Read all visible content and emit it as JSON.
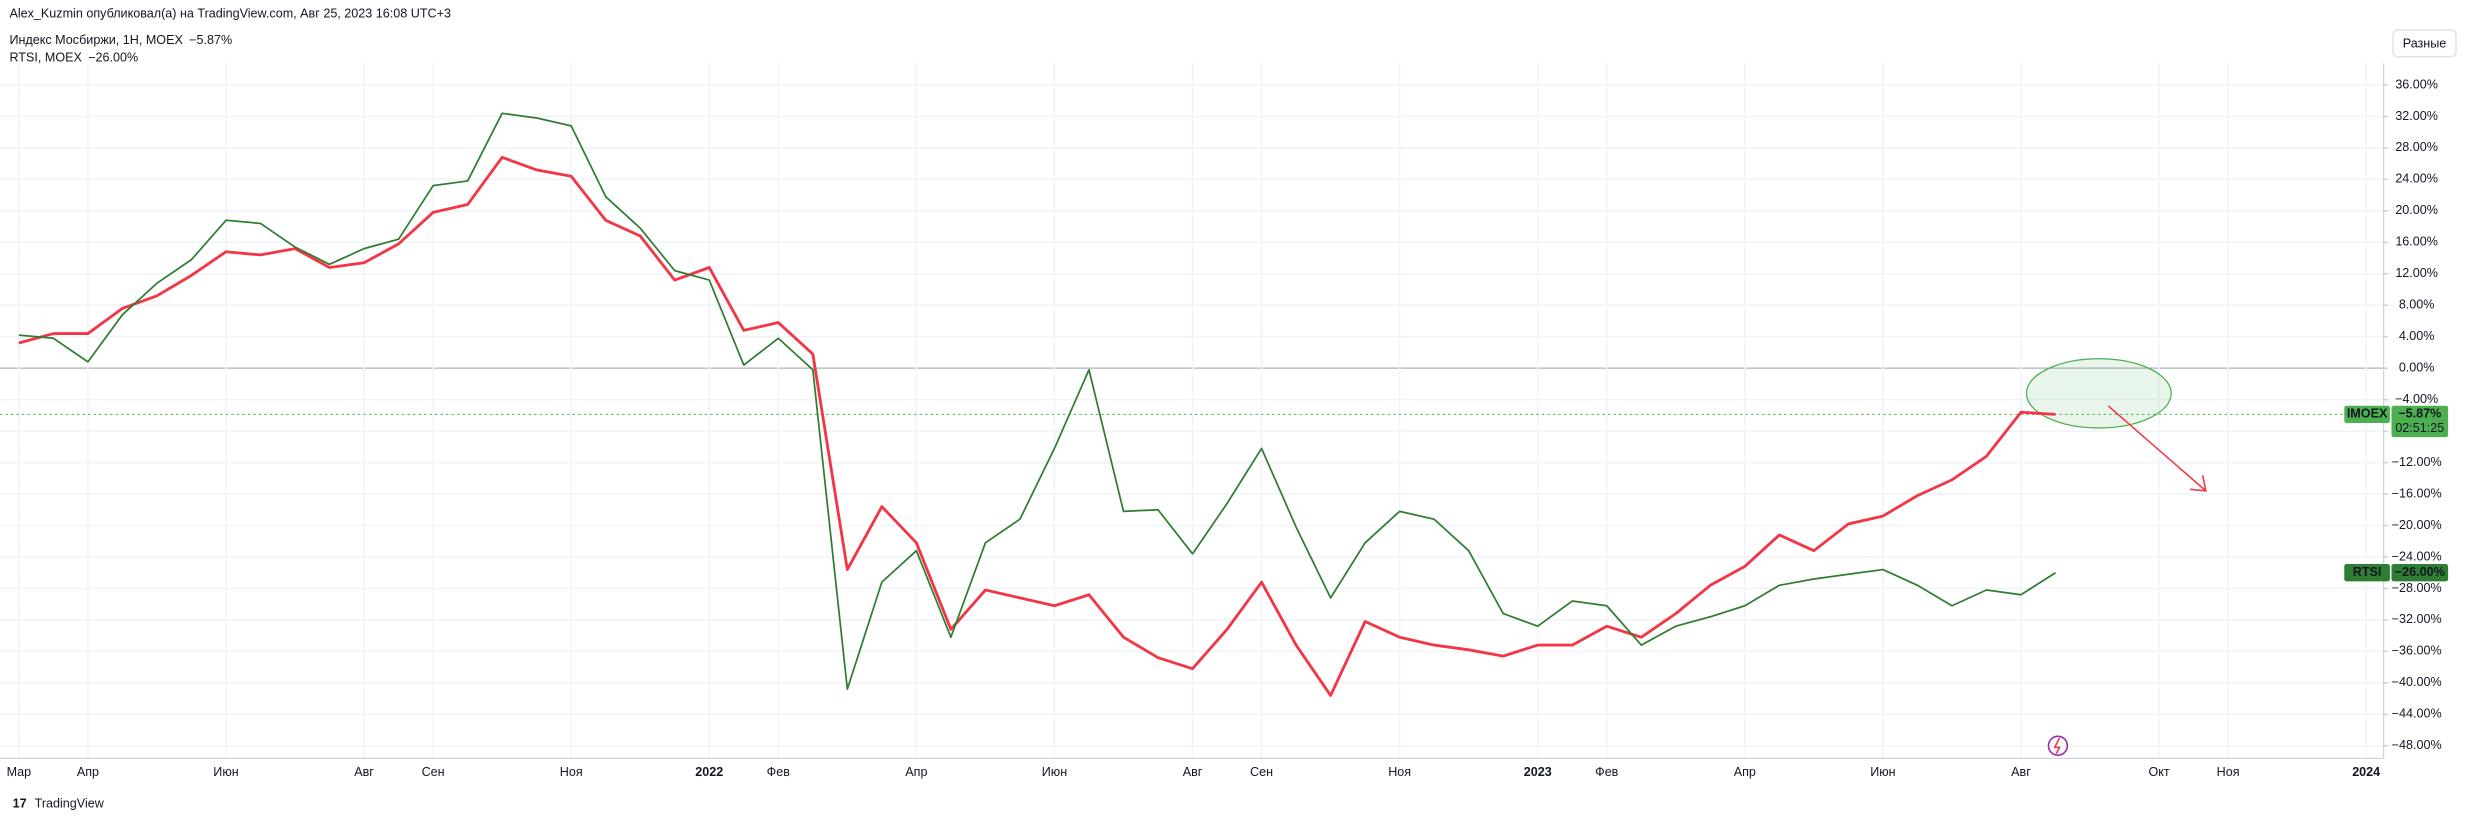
{
  "chart_data": {
    "type": "line",
    "title": "Alex_Kuzmin опубликовал(а) на TradingView.com, Авг 25, 2023 16:08 UTC+3",
    "button": "Разные",
    "brand": "TradingView",
    "time_label": "02:51:25",
    "categories": [
      "Мар",
      null,
      "Апр",
      null,
      null,
      null,
      "Июн",
      null,
      null,
      null,
      "Авг",
      null,
      "Сен",
      null,
      null,
      null,
      "Ноя",
      null,
      null,
      null,
      "2022",
      null,
      "Фев",
      null,
      null,
      null,
      "Апр",
      null,
      null,
      null,
      "Июн",
      null,
      null,
      null,
      "Авг",
      null,
      "Сен",
      null,
      null,
      null,
      "Ноя",
      null,
      null,
      null,
      "2023",
      null,
      "Фев",
      null,
      null,
      null,
      "Апр",
      null,
      null,
      null,
      "Июн",
      null,
      null,
      null,
      "Авг",
      null,
      null,
      null,
      "Окт",
      null,
      "Ноя",
      null,
      null,
      null,
      "2024",
      null
    ],
    "series": [
      {
        "name": "Индекс Мосбиржи, 1Н, MOEX",
        "legend_value": "−5.87%",
        "tag": "IMOEX",
        "tag_value": "−5.87%",
        "color": "#f23645",
        "values": [
          3.2,
          4.4,
          4.4,
          7.6,
          9.2,
          11.8,
          14.8,
          14.4,
          15.2,
          12.8,
          13.4,
          15.8,
          19.8,
          20.8,
          26.8,
          25.2,
          24.4,
          18.8,
          16.8,
          11.2,
          12.8,
          4.8,
          5.8,
          1.8,
          -25.6,
          -17.6,
          -22.2,
          -33.2,
          -28.2,
          -29.2,
          -30.2,
          -28.8,
          -34.2,
          -36.8,
          -38.2,
          -33.2,
          -27.2,
          -35.2,
          -41.6,
          -32.2,
          -34.2,
          -35.2,
          -35.8,
          -36.6,
          -35.2,
          -35.2,
          -32.8,
          -34.2,
          -31.2,
          -27.6,
          -25.2,
          -21.2,
          -23.2,
          -19.8,
          -18.8,
          -16.2,
          -14.2,
          -11.2,
          -5.6,
          -5.87,
          null,
          null,
          null,
          null,
          null,
          null,
          null,
          null,
          null,
          null
        ]
      },
      {
        "name": "RTSI, MOEX",
        "legend_value": "−26.00%",
        "tag": "RTSI",
        "tag_value": "−26.00%",
        "color": "#2e7d32",
        "values": [
          4.2,
          3.8,
          0.8,
          6.8,
          10.8,
          13.8,
          18.8,
          18.4,
          15.4,
          13.2,
          15.2,
          16.4,
          23.2,
          23.8,
          32.4,
          31.8,
          30.8,
          21.8,
          17.8,
          12.4,
          11.2,
          0.4,
          3.8,
          -0.2,
          -40.8,
          -27.2,
          -23.2,
          -34.2,
          -22.2,
          -19.2,
          -10.2,
          -0.2,
          -18.2,
          -18,
          -23.6,
          -17.2,
          -10.2,
          -20.2,
          -29.2,
          -22.2,
          -18.2,
          -19.2,
          -23.2,
          -31.2,
          -32.8,
          -29.6,
          -30.2,
          -35.2,
          -32.8,
          -31.6,
          -30.2,
          -27.6,
          -26.8,
          -26.2,
          -25.6,
          -27.6,
          -30.2,
          -28.2,
          -28.8,
          -26,
          null,
          null,
          null,
          null,
          null,
          null,
          null,
          null,
          null,
          null
        ]
      }
    ],
    "ylim": [
      -49.6,
      38.8
    ],
    "yticks": [
      {
        "value": 36,
        "label": "36.00%"
      },
      {
        "value": 32,
        "label": "32.00%"
      },
      {
        "value": 28,
        "label": "28.00%"
      },
      {
        "value": 24,
        "label": "24.00%"
      },
      {
        "value": 20,
        "label": "20.00%"
      },
      {
        "value": 16,
        "label": "16.00%"
      },
      {
        "value": 12,
        "label": "12.00%"
      },
      {
        "value": 8,
        "label": "8.00%"
      },
      {
        "value": 4,
        "label": "4.00%"
      },
      {
        "value": 0,
        "label": "0.00%"
      },
      {
        "value": -4,
        "label": "−4.00%"
      },
      {
        "value": -8,
        "label": "−8.00%"
      },
      {
        "value": -12,
        "label": "−12.00%"
      },
      {
        "value": -16,
        "label": "−16.00%"
      },
      {
        "value": -20,
        "label": "−20.00%"
      },
      {
        "value": -24,
        "label": "−24.00%"
      },
      {
        "value": -28,
        "label": "−28.00%"
      },
      {
        "value": -32,
        "label": "−32.00%"
      },
      {
        "value": -36,
        "label": "−36.00%"
      },
      {
        "value": -40,
        "label": "−40.00%"
      },
      {
        "value": -44,
        "label": "−44.00%"
      },
      {
        "value": -48,
        "label": "−48.00%"
      }
    ],
    "grid": true
  }
}
